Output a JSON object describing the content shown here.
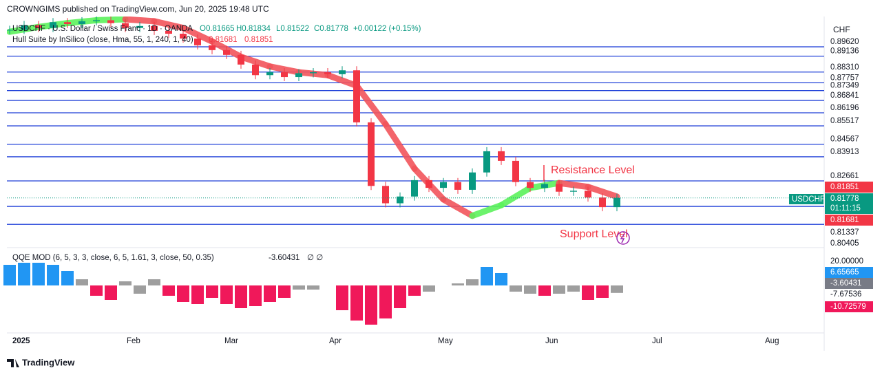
{
  "header": {
    "publisher": "CROWNGIMS published on TradingView.com, Jun 20, 2025 19:48 UTC"
  },
  "legend": {
    "symbol": "USDCHF · U.S. Dollar / Swiss Franc · 1D · OANDA",
    "open": "O0.81665",
    "high": "H0.81834",
    "low": "L0.81522",
    "close": "C0.81778",
    "change": "+0.00122 (+0.15%)",
    "hull": "Hull Suite by InSilico (close, Hma, 55, 1, 240, 1, 40)",
    "hull_v1": "0.81681",
    "hull_v2": "0.81851"
  },
  "price_pane": {
    "currency": "CHF",
    "levels": [
      {
        "value": 0.8962,
        "label": "0.89620"
      },
      {
        "value": 0.89136,
        "label": "0.89136"
      },
      {
        "value": 0.8831,
        "label": "0.88310"
      },
      {
        "value": 0.87757,
        "label": "0.87757"
      },
      {
        "value": 0.87349,
        "label": "0.87349"
      },
      {
        "value": 0.86841,
        "label": "0.86841"
      },
      {
        "value": 0.86196,
        "label": "0.86196"
      },
      {
        "value": 0.85517,
        "label": "0.85517"
      },
      {
        "value": 0.84567,
        "label": "0.84567"
      },
      {
        "value": 0.83913,
        "label": "0.83913"
      },
      {
        "value": 0.82661,
        "label": "0.82661"
      },
      {
        "value": 0.81337,
        "label": "0.81337"
      },
      {
        "value": 0.80405,
        "label": "0.80405"
      }
    ],
    "closes": [
      0.905,
      0.9075,
      0.906,
      0.909,
      0.908,
      0.9095,
      0.91,
      0.9085,
      0.906,
      0.907,
      0.9045,
      0.903,
      0.9005,
      0.897,
      0.8945,
      0.892,
      0.887,
      0.8815,
      0.883,
      0.8805,
      0.8825,
      0.883,
      0.882,
      0.884,
      0.857,
      0.824,
      0.815,
      0.8185,
      0.827,
      0.823,
      0.826,
      0.822,
      0.831,
      0.842,
      0.837,
      0.826,
      0.823,
      0.825,
      0.821,
      0.8215,
      0.818,
      0.813,
      0.81778
    ],
    "hull": [
      0.904,
      0.9065,
      0.9085,
      0.91,
      0.9105,
      0.9095,
      0.906,
      0.899,
      0.891,
      0.886,
      0.883,
      0.8815,
      0.876,
      0.856,
      0.833,
      0.817,
      0.8085,
      0.814,
      0.823,
      0.8255,
      0.8235,
      0.8185
    ],
    "hull_label": "0.81851",
    "symbol_label": "USDCHF",
    "last_price": "0.81778",
    "countdown": "01:11:15",
    "low_label": "0.81681",
    "resistance": "Resistance Level",
    "support": "Support Level"
  },
  "qqe": {
    "title": "QQE MOD (6, 5, 3, 3, close, 6, 5, 1.61, 3, close, 50, 0.35)",
    "value": "-3.60431",
    "symbols": "∅ ∅",
    "values": [
      10,
      11,
      11,
      10,
      7,
      3,
      -5,
      -7,
      2,
      -4,
      3,
      -5,
      -8,
      -9,
      -6,
      -9,
      -11,
      -10,
      -8,
      -6,
      -2,
      -2,
      0,
      -12,
      -17,
      -19,
      -16,
      -11,
      -5,
      -3,
      0,
      1,
      3,
      9,
      6,
      -3,
      -4,
      -5,
      -4,
      -3,
      -7,
      -6,
      -3.60431
    ],
    "axis_labels": [
      "20.00000",
      "6.65665",
      "-3.60431",
      "-7.67536",
      "-10.72579"
    ]
  },
  "time_axis": [
    "2025",
    "Feb",
    "Mar",
    "Apr",
    "May",
    "Jun",
    "Jul",
    "Aug"
  ],
  "footer": {
    "brand": "TradingView"
  }
}
